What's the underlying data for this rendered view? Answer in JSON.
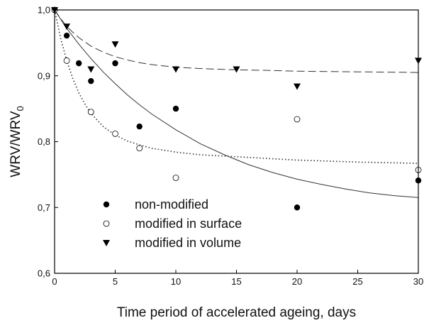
{
  "chart_data": {
    "type": "scatter",
    "xlabel": "Time period of accelerated ageing, days",
    "ylabel": "WRV/WRV",
    "ylabel_subscript": "0",
    "xlim": [
      0,
      30
    ],
    "ylim": [
      0.6,
      1.0
    ],
    "x_ticks": [
      0,
      5,
      10,
      15,
      20,
      25,
      30
    ],
    "y_ticks": [
      0.6,
      0.7,
      0.8,
      0.9,
      1.0
    ],
    "x_tick_labels": [
      "0",
      "5",
      "10",
      "15",
      "20",
      "25",
      "30"
    ],
    "y_tick_labels": [
      "0,6",
      "0,7",
      "0,8",
      "0,9",
      "1,0"
    ],
    "grid": false,
    "legend_position": "bottom-left",
    "series": [
      {
        "name": "non-modified",
        "marker": "filled-circle",
        "line_style": "solid",
        "x": [
          0,
          1,
          2,
          3,
          5,
          7,
          10,
          20,
          30
        ],
        "y": [
          1.0,
          0.961,
          0.919,
          0.892,
          0.919,
          0.823,
          0.85,
          0.7,
          0.741
        ],
        "fit_x": [
          0,
          0.5,
          1,
          1.5,
          2,
          3,
          4,
          5,
          6,
          7,
          8,
          10,
          12,
          14,
          16,
          18,
          20,
          22,
          24,
          26,
          28,
          30
        ],
        "fit_y": [
          1.0,
          0.986,
          0.972,
          0.96,
          0.948,
          0.926,
          0.906,
          0.888,
          0.871,
          0.856,
          0.842,
          0.818,
          0.797,
          0.78,
          0.765,
          0.753,
          0.743,
          0.735,
          0.728,
          0.722,
          0.718,
          0.715
        ]
      },
      {
        "name": "modified in surface",
        "marker": "open-circle",
        "line_style": "dotted",
        "x": [
          0,
          1,
          3,
          5,
          7,
          10,
          20,
          30
        ],
        "y": [
          1.0,
          0.923,
          0.845,
          0.812,
          0.79,
          0.745,
          0.834,
          0.757
        ],
        "fit_x": [
          0,
          0.5,
          1,
          1.5,
          2,
          2.5,
          3,
          4,
          5,
          6,
          7,
          8,
          10,
          12,
          15,
          20,
          25,
          30
        ],
        "fit_y": [
          1.0,
          0.957,
          0.923,
          0.896,
          0.874,
          0.857,
          0.843,
          0.823,
          0.81,
          0.801,
          0.795,
          0.79,
          0.784,
          0.78,
          0.777,
          0.772,
          0.769,
          0.767
        ]
      },
      {
        "name": "modified in volume",
        "marker": "filled-triangle-down",
        "line_style": "dashed",
        "x": [
          0,
          1,
          3,
          5,
          10,
          15,
          20,
          30
        ],
        "y": [
          1.0,
          0.975,
          0.91,
          0.948,
          0.91,
          0.91,
          0.884,
          0.923
        ],
        "fit_x": [
          0,
          0.5,
          1,
          1.5,
          2,
          3,
          4,
          5,
          6,
          7,
          8,
          10,
          12,
          15,
          18,
          20,
          25,
          30
        ],
        "fit_y": [
          1.0,
          0.987,
          0.975,
          0.966,
          0.958,
          0.945,
          0.936,
          0.929,
          0.924,
          0.92,
          0.917,
          0.913,
          0.911,
          0.909,
          0.908,
          0.907,
          0.906,
          0.905
        ]
      }
    ]
  }
}
